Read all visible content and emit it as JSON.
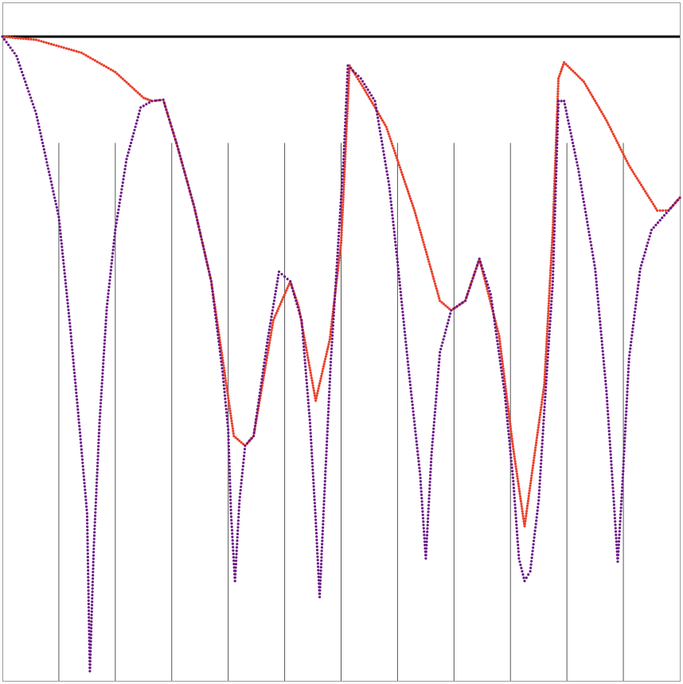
{
  "chart_data": {
    "type": "scatter",
    "title": "",
    "xlabel": "",
    "ylabel": "",
    "grid": false,
    "legend": "none",
    "xlim": [
      0,
      12
    ],
    "ylim": [
      -1,
      0.05
    ],
    "baseline_y": 0,
    "vertical_lines": {
      "x": [
        1,
        2,
        3,
        4,
        5,
        6,
        7,
        8,
        9,
        10,
        11
      ],
      "y_top": -0.165,
      "y_bottom": -1
    },
    "series": [
      {
        "color": "#e8402a",
        "marker": "dot",
        "knots": [
          [
            0.0,
            0.0
          ],
          [
            0.6,
            -0.005
          ],
          [
            1.4,
            -0.025
          ],
          [
            2.0,
            -0.055
          ],
          [
            2.5,
            -0.095
          ],
          [
            2.65,
            -0.1
          ],
          [
            2.85,
            -0.098
          ],
          [
            3.1,
            -0.17
          ],
          [
            3.4,
            -0.265
          ],
          [
            3.7,
            -0.38
          ],
          [
            3.95,
            -0.53
          ],
          [
            4.1,
            -0.62
          ],
          [
            4.3,
            -0.635
          ],
          [
            4.45,
            -0.62
          ],
          [
            4.8,
            -0.44
          ],
          [
            5.1,
            -0.38
          ],
          [
            5.25,
            -0.42
          ],
          [
            5.55,
            -0.565
          ],
          [
            5.8,
            -0.47
          ],
          [
            6.0,
            -0.32
          ],
          [
            6.15,
            -0.045
          ],
          [
            6.4,
            -0.08
          ],
          [
            6.8,
            -0.14
          ],
          [
            7.3,
            -0.27
          ],
          [
            7.75,
            -0.41
          ],
          [
            7.95,
            -0.425
          ],
          [
            8.2,
            -0.41
          ],
          [
            8.45,
            -0.345
          ],
          [
            8.8,
            -0.465
          ],
          [
            9.05,
            -0.64
          ],
          [
            9.25,
            -0.76
          ],
          [
            9.6,
            -0.54
          ],
          [
            9.75,
            -0.3
          ],
          [
            9.85,
            -0.065
          ],
          [
            9.95,
            -0.04
          ],
          [
            10.3,
            -0.07
          ],
          [
            10.7,
            -0.13
          ],
          [
            11.1,
            -0.2
          ],
          [
            11.6,
            -0.27
          ],
          [
            11.8,
            -0.27
          ],
          [
            12.0,
            -0.25
          ]
        ]
      },
      {
        "color": "#6b1a86",
        "marker": "dot",
        "knots": [
          [
            0.0,
            0.0
          ],
          [
            0.25,
            -0.03
          ],
          [
            0.6,
            -0.12
          ],
          [
            0.8,
            -0.2
          ],
          [
            1.0,
            -0.28
          ],
          [
            1.2,
            -0.45
          ],
          [
            1.38,
            -0.62
          ],
          [
            1.5,
            -0.74
          ],
          [
            1.55,
            -0.985
          ],
          [
            1.62,
            -0.79
          ],
          [
            1.72,
            -0.6
          ],
          [
            1.85,
            -0.42
          ],
          [
            2.0,
            -0.3
          ],
          [
            2.2,
            -0.19
          ],
          [
            2.45,
            -0.11
          ],
          [
            2.65,
            -0.1
          ],
          [
            2.85,
            -0.098
          ],
          [
            3.1,
            -0.17
          ],
          [
            3.4,
            -0.265
          ],
          [
            3.7,
            -0.38
          ],
          [
            3.9,
            -0.52
          ],
          [
            4.0,
            -0.61
          ],
          [
            4.05,
            -0.74
          ],
          [
            4.12,
            -0.845
          ],
          [
            4.2,
            -0.72
          ],
          [
            4.3,
            -0.635
          ],
          [
            4.45,
            -0.62
          ],
          [
            4.7,
            -0.47
          ],
          [
            4.9,
            -0.365
          ],
          [
            5.1,
            -0.38
          ],
          [
            5.3,
            -0.44
          ],
          [
            5.45,
            -0.6
          ],
          [
            5.55,
            -0.75
          ],
          [
            5.62,
            -0.87
          ],
          [
            5.72,
            -0.68
          ],
          [
            5.82,
            -0.5
          ],
          [
            5.95,
            -0.32
          ],
          [
            6.05,
            -0.18
          ],
          [
            6.12,
            -0.045
          ],
          [
            6.35,
            -0.065
          ],
          [
            6.6,
            -0.1
          ],
          [
            6.85,
            -0.23
          ],
          [
            7.0,
            -0.35
          ],
          [
            7.2,
            -0.52
          ],
          [
            7.4,
            -0.68
          ],
          [
            7.5,
            -0.81
          ],
          [
            7.6,
            -0.65
          ],
          [
            7.75,
            -0.49
          ],
          [
            7.95,
            -0.425
          ],
          [
            8.2,
            -0.41
          ],
          [
            8.45,
            -0.345
          ],
          [
            8.65,
            -0.4
          ],
          [
            8.9,
            -0.555
          ],
          [
            9.05,
            -0.69
          ],
          [
            9.15,
            -0.81
          ],
          [
            9.25,
            -0.845
          ],
          [
            9.35,
            -0.83
          ],
          [
            9.5,
            -0.72
          ],
          [
            9.6,
            -0.58
          ],
          [
            9.75,
            -0.38
          ],
          [
            9.85,
            -0.1
          ],
          [
            9.95,
            -0.1
          ],
          [
            10.2,
            -0.205
          ],
          [
            10.5,
            -0.36
          ],
          [
            10.7,
            -0.55
          ],
          [
            10.8,
            -0.68
          ],
          [
            10.9,
            -0.815
          ],
          [
            10.98,
            -0.7
          ],
          [
            11.1,
            -0.5
          ],
          [
            11.3,
            -0.36
          ],
          [
            11.5,
            -0.3
          ],
          [
            11.8,
            -0.27
          ],
          [
            12.0,
            -0.25
          ]
        ]
      }
    ]
  }
}
